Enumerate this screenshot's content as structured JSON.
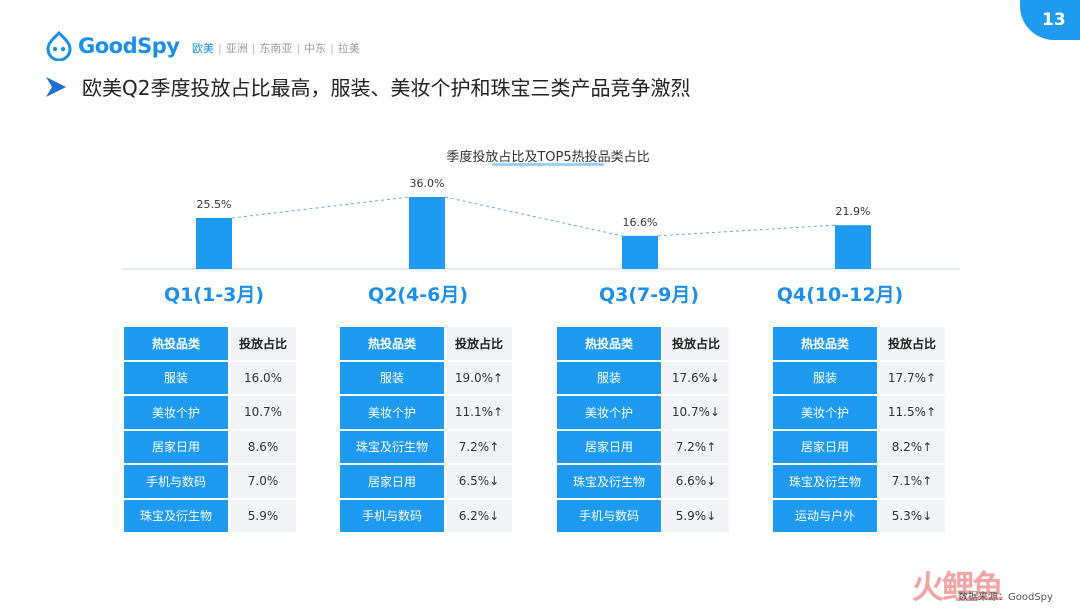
{
  "brand": {
    "name": "GoodSpy"
  },
  "regions": [
    {
      "label": "欧美",
      "active": true
    },
    {
      "label": "亚洲",
      "active": false
    },
    {
      "label": "东南亚",
      "active": false
    },
    {
      "label": "中东",
      "active": false
    },
    {
      "label": "拉美",
      "active": false
    }
  ],
  "page_number": "13",
  "headline": "欧美Q2季度投放占比最高，服装、美妆个护和珠宝三类产品竞争激烈",
  "chart_data": {
    "type": "bar",
    "title": "季度投放占比及TOP5热投品类占比",
    "categories": [
      "Q1(1-3月)",
      "Q2(4-6月)",
      "Q3(7-9月)",
      "Q4(10-12月)"
    ],
    "values": [
      25.5,
      36.0,
      16.6,
      21.9
    ],
    "value_labels": [
      "25.5%",
      "36.0%",
      "16.6%",
      "21.9%"
    ],
    "ylim": [
      0,
      40
    ],
    "trend_line": "dashed",
    "bar_color": "#1e9bf0"
  },
  "tables": [
    {
      "quarter": "Q1(1-3月)",
      "header": [
        "热投品类",
        "投放占比"
      ],
      "rows": [
        {
          "category": "服装",
          "share": "16.0%",
          "trend": "neutral"
        },
        {
          "category": "美妆个护",
          "share": "10.7%",
          "trend": "neutral"
        },
        {
          "category": "居家日用",
          "share": "8.6%",
          "trend": "neutral"
        },
        {
          "category": "手机与数码",
          "share": "7.0%",
          "trend": "neutral"
        },
        {
          "category": "珠宝及衍生物",
          "share": "5.9%",
          "trend": "neutral"
        }
      ]
    },
    {
      "quarter": "Q2(4-6月)",
      "header": [
        "热投品类",
        "投放占比"
      ],
      "rows": [
        {
          "category": "服装",
          "share": "19.0%↑",
          "trend": "up"
        },
        {
          "category": "美妆个护",
          "share": "11.1%↑",
          "trend": "up"
        },
        {
          "category": "珠宝及衍生物",
          "share": "7.2%↑",
          "trend": "up"
        },
        {
          "category": "居家日用",
          "share": "6.5%↓",
          "trend": "down"
        },
        {
          "category": "手机与数码",
          "share": "6.2%↓",
          "trend": "down"
        }
      ]
    },
    {
      "quarter": "Q3(7-9月)",
      "header": [
        "热投品类",
        "投放占比"
      ],
      "rows": [
        {
          "category": "服装",
          "share": "17.6%↓",
          "trend": "down"
        },
        {
          "category": "美妆个护",
          "share": "10.7%↓",
          "trend": "down"
        },
        {
          "category": "居家日用",
          "share": "7.2%↑",
          "trend": "up"
        },
        {
          "category": "珠宝及衍生物",
          "share": "6.6%↓",
          "trend": "down"
        },
        {
          "category": "手机与数码",
          "share": "5.9%↓",
          "trend": "down"
        }
      ]
    },
    {
      "quarter": "Q4(10-12月)",
      "header": [
        "热投品类",
        "投放占比"
      ],
      "rows": [
        {
          "category": "服装",
          "share": "17.7%↑",
          "trend": "up"
        },
        {
          "category": "美妆个护",
          "share": "11.5%↑",
          "trend": "up"
        },
        {
          "category": "居家日用",
          "share": "8.2%↑",
          "trend": "up"
        },
        {
          "category": "珠宝及衍生物",
          "share": "7.1%↑",
          "trend": "up"
        },
        {
          "category": "运动与户外",
          "share": "5.3%↓",
          "trend": "down"
        }
      ]
    }
  ],
  "source": "数据来源：GoodSpy",
  "watermark": "火鲤鱼"
}
